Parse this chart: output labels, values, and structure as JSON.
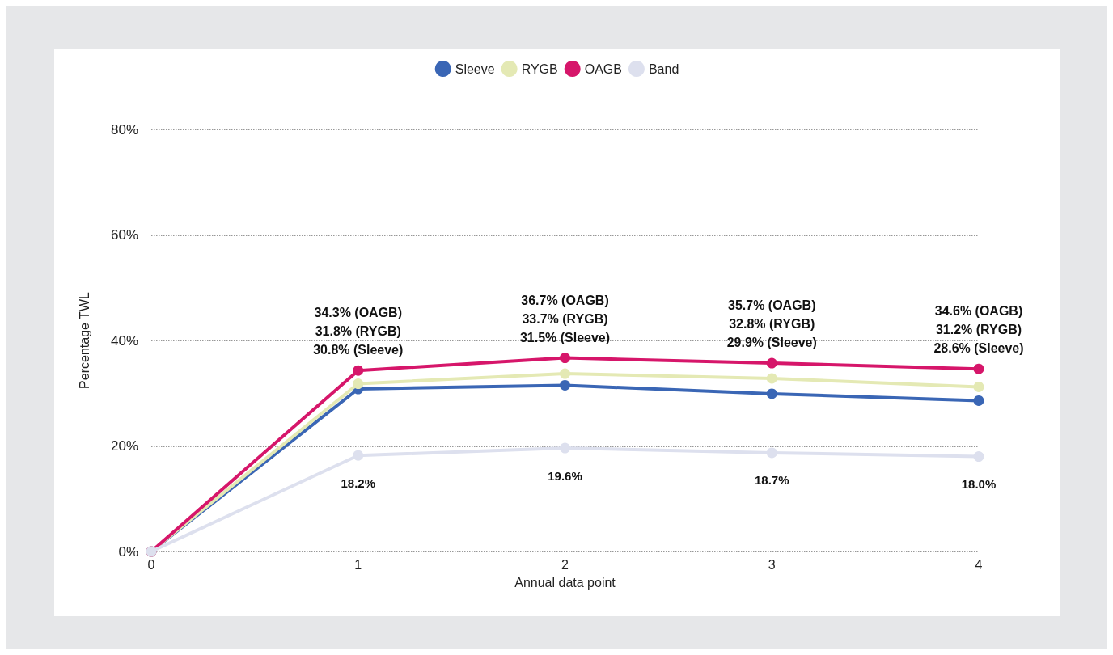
{
  "chart_data": {
    "type": "line",
    "xlabel": "Annual data point",
    "ylabel": "Percentage TWL",
    "categories": [
      "0",
      "1",
      "2",
      "3",
      "4"
    ],
    "series": [
      {
        "name": "Sleeve",
        "color": "#3a66b5",
        "values": [
          0,
          30.8,
          31.5,
          29.9,
          28.6
        ]
      },
      {
        "name": "RYGB",
        "color": "#e4e9b4",
        "values": [
          0,
          31.8,
          33.7,
          32.8,
          31.2
        ]
      },
      {
        "name": "OAGB",
        "color": "#d6166a",
        "values": [
          0,
          34.3,
          36.7,
          35.7,
          34.6
        ]
      },
      {
        "name": "Band",
        "color": "#dde0ee",
        "values": [
          0,
          18.2,
          19.6,
          18.7,
          18.0
        ],
        "value_labels": [
          null,
          "18.2%",
          "19.6%",
          "18.7%",
          "18.0%"
        ]
      }
    ],
    "annotations": [
      {
        "text": "34.3% (OAGB)\n31.8% (RYGB)\n30.8% (Sleeve)",
        "x": "1",
        "y": 34.3
      },
      {
        "text": "36.7% (OAGB)\n33.7% (RYGB)\n31.5% (Sleeve)",
        "x": "2",
        "y": 36.7
      },
      {
        "text": "35.7% (OAGB)\n32.8% (RYGB)\n29.9% (Sleeve)",
        "x": "3",
        "y": 35.7
      },
      {
        "text": "34.6% (OAGB)\n31.2% (RYGB)\n28.6% (Sleeve)",
        "x": "4",
        "y": 34.6
      }
    ],
    "ylim": [
      0,
      80
    ],
    "yticks": [
      {
        "value": 0,
        "label": "0%"
      },
      {
        "value": 20,
        "label": "20%"
      },
      {
        "value": 40,
        "label": "40%"
      },
      {
        "value": 60,
        "label": "60%"
      },
      {
        "value": 80,
        "label": "80%"
      }
    ],
    "grid": "y",
    "legend": "top",
    "marker": "circle",
    "line_style": "solid"
  }
}
